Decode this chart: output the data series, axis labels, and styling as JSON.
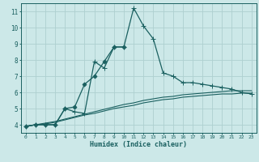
{
  "xlabel": "Humidex (Indice chaleur)",
  "bg_color": "#cce8e8",
  "grid_color": "#aed0d0",
  "line_color": "#1a6060",
  "xlim": [
    -0.5,
    23.5
  ],
  "ylim": [
    3.5,
    11.5
  ],
  "yticks": [
    4,
    5,
    6,
    7,
    8,
    9,
    10,
    11
  ],
  "xticks": [
    0,
    1,
    2,
    3,
    4,
    5,
    6,
    7,
    8,
    9,
    10,
    11,
    12,
    13,
    14,
    15,
    16,
    17,
    18,
    19,
    20,
    21,
    22,
    23
  ],
  "series": [
    {
      "x": [
        0,
        1,
        2,
        3,
        4,
        5,
        6,
        7,
        8,
        9,
        10,
        11,
        12,
        13,
        14,
        15,
        16,
        17,
        18,
        19,
        20,
        21,
        22,
        23
      ],
      "y": [
        3.9,
        4.0,
        4.0,
        4.0,
        5.0,
        4.8,
        4.7,
        7.9,
        7.5,
        8.8,
        8.8,
        11.2,
        10.1,
        9.3,
        7.2,
        7.0,
        6.6,
        6.6,
        6.5,
        6.4,
        6.3,
        6.2,
        6.0,
        5.9
      ],
      "marker": "+",
      "linewidth": 0.9,
      "markersize": 4
    },
    {
      "x": [
        0,
        1,
        2,
        3,
        4,
        5,
        6,
        7,
        8,
        9,
        10
      ],
      "y": [
        3.9,
        4.0,
        4.0,
        4.0,
        5.0,
        5.1,
        6.5,
        7.0,
        7.9,
        8.8,
        8.8
      ],
      "marker": "D",
      "linewidth": 0.9,
      "markersize": 2.5
    },
    {
      "x": [
        0,
        1,
        2,
        3,
        4,
        5,
        6,
        7,
        8,
        9,
        10,
        11,
        12,
        13,
        14,
        15,
        16,
        17,
        18,
        19,
        20,
        21,
        22,
        23
      ],
      "y": [
        3.9,
        4.0,
        4.05,
        4.15,
        4.3,
        4.45,
        4.6,
        4.7,
        4.85,
        5.0,
        5.1,
        5.2,
        5.35,
        5.45,
        5.55,
        5.6,
        5.7,
        5.75,
        5.8,
        5.85,
        5.9,
        5.9,
        5.95,
        5.95
      ],
      "marker": null,
      "linewidth": 0.8,
      "markersize": 0
    },
    {
      "x": [
        0,
        1,
        2,
        3,
        4,
        5,
        6,
        7,
        8,
        9,
        10,
        11,
        12,
        13,
        14,
        15,
        16,
        17,
        18,
        19,
        20,
        21,
        22,
        23
      ],
      "y": [
        3.9,
        4.0,
        4.1,
        4.2,
        4.35,
        4.5,
        4.65,
        4.8,
        4.95,
        5.1,
        5.25,
        5.35,
        5.5,
        5.6,
        5.7,
        5.75,
        5.85,
        5.9,
        5.95,
        6.0,
        6.05,
        6.1,
        6.1,
        6.1
      ],
      "marker": null,
      "linewidth": 0.8,
      "markersize": 0
    }
  ]
}
